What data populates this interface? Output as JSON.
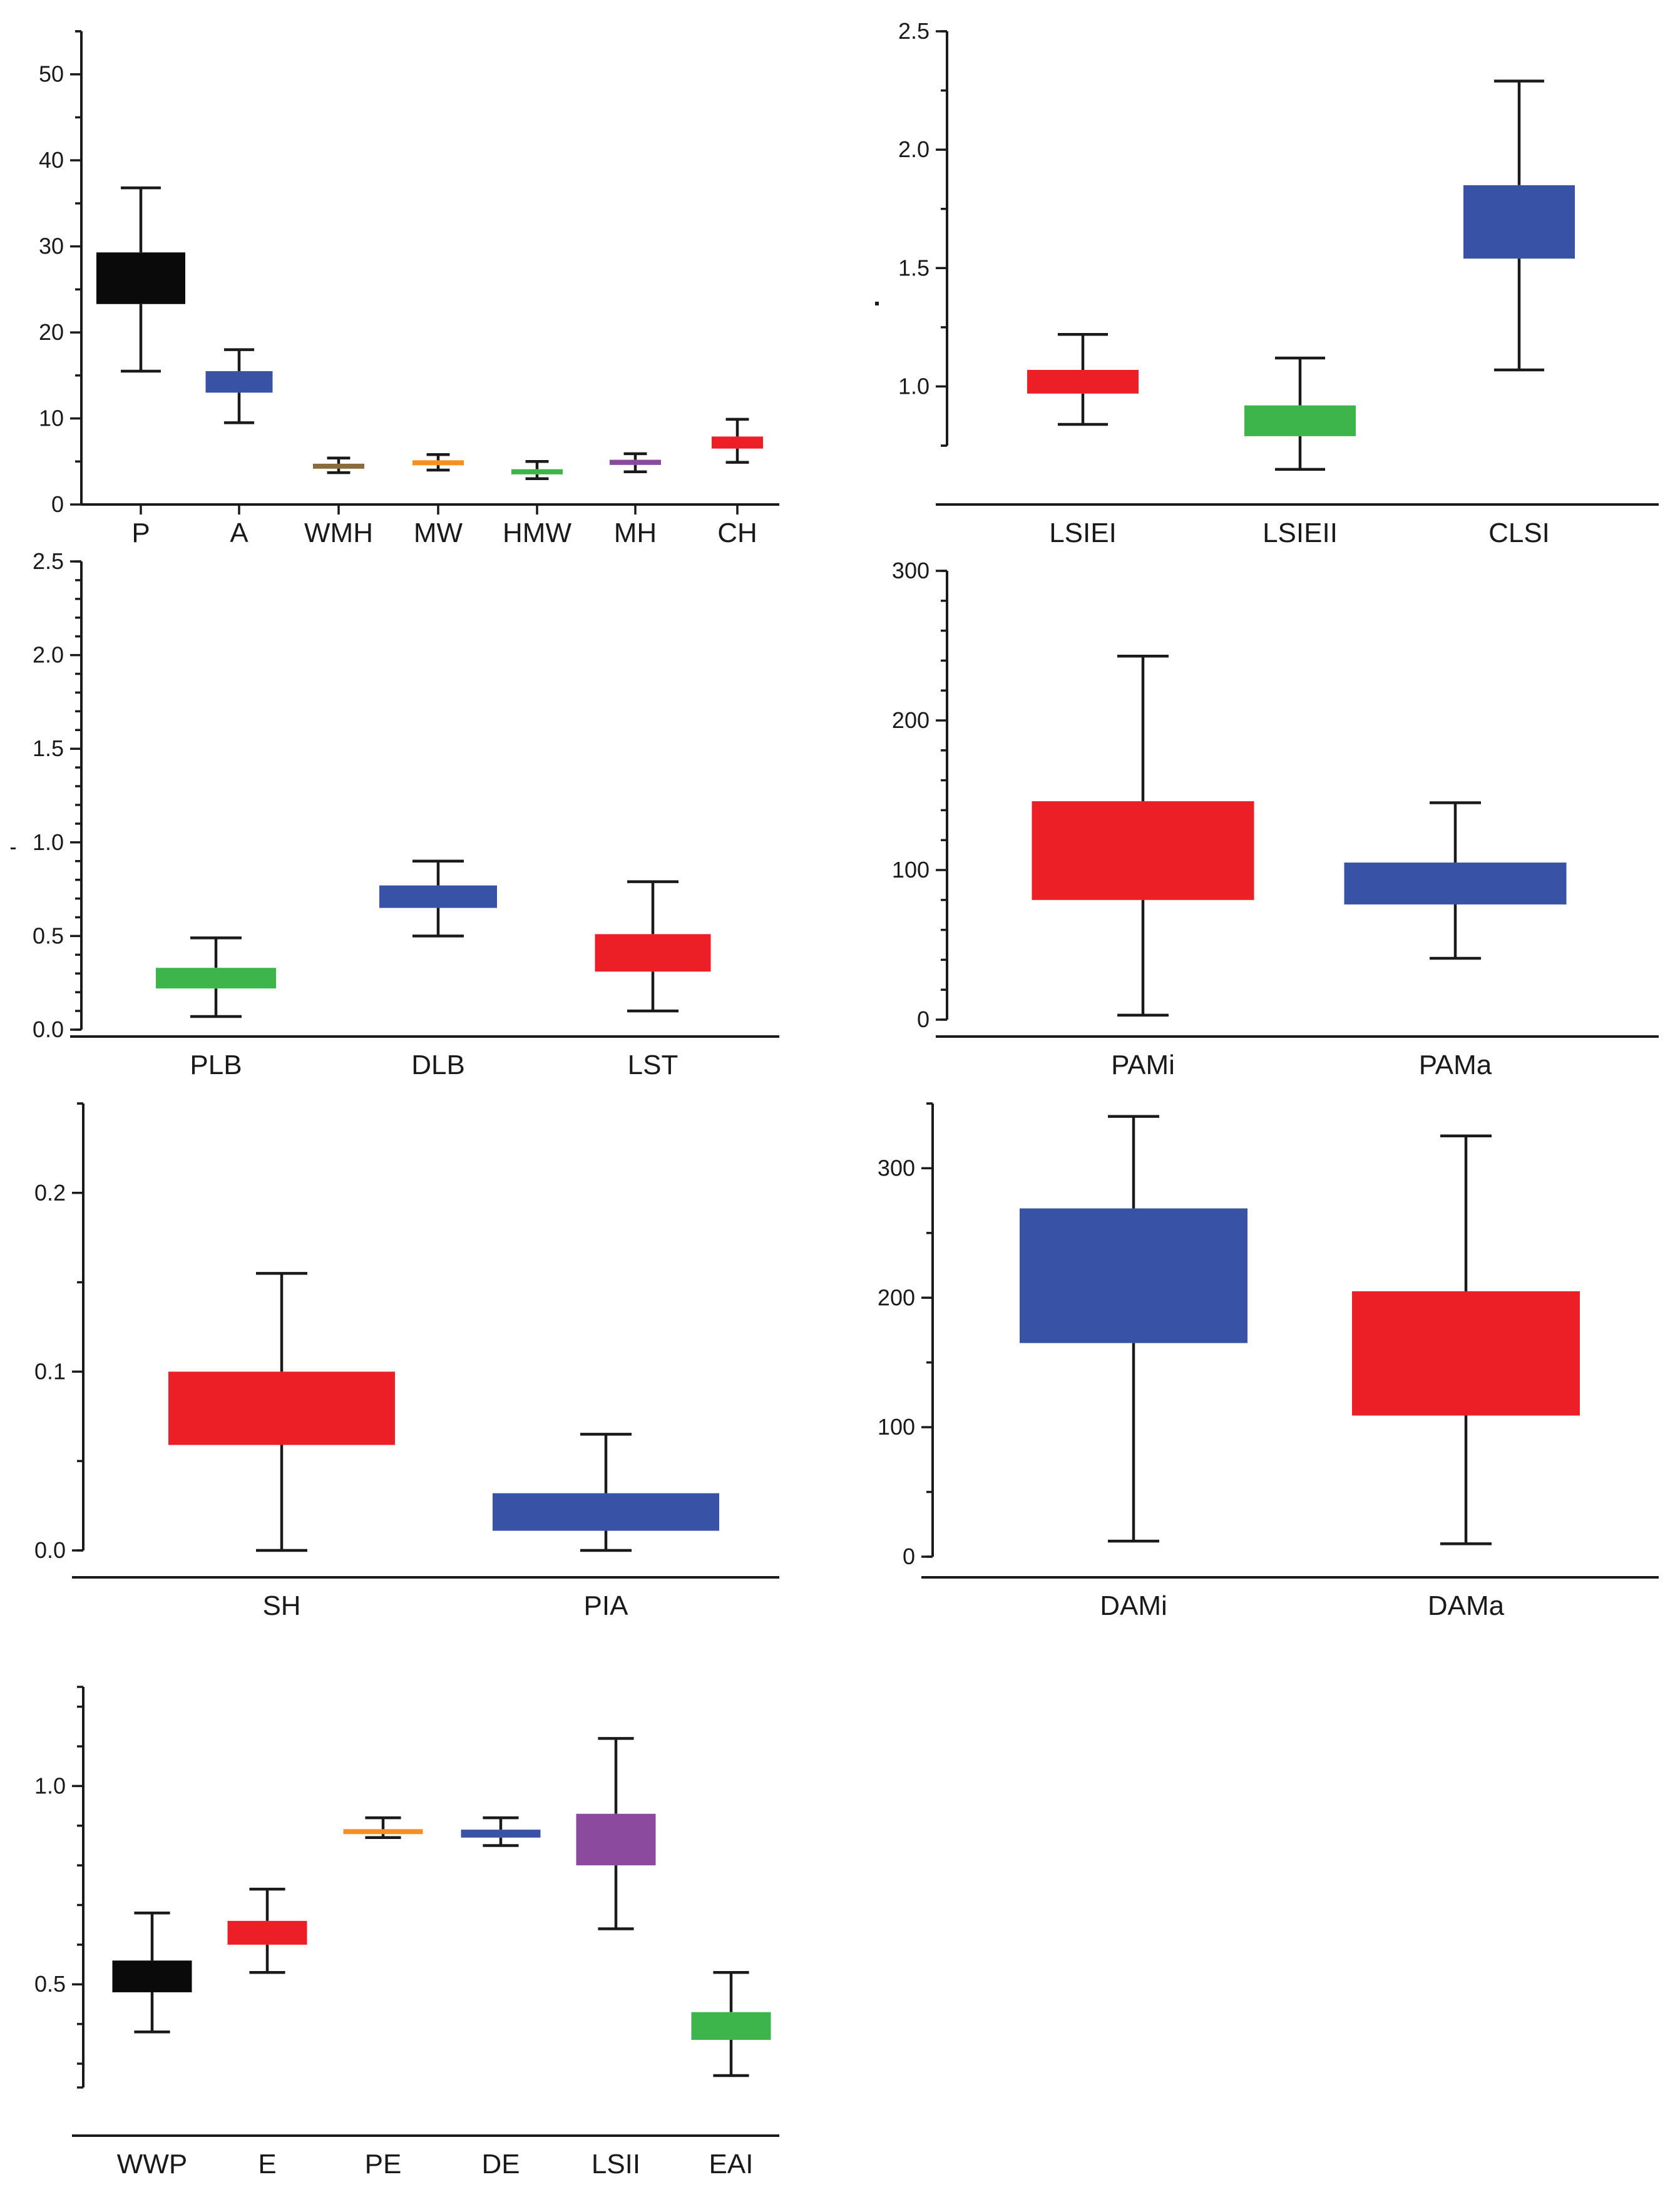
{
  "colors": {
    "black": "#0a0a0a",
    "blue": "#3853a5",
    "red": "#ec1f27",
    "green": "#3db54a",
    "orange": "#f7901e",
    "purple": "#8b4a9e",
    "brown": "#8b6b3c"
  },
  "chart_data": [
    {
      "id": "panel-1",
      "type": "box",
      "ylim": [
        0,
        55
      ],
      "yticks": [
        0,
        10,
        20,
        30,
        40,
        50
      ],
      "ytick_labels": [
        "0",
        "10",
        "20",
        "30",
        "40",
        "50"
      ],
      "categories": [
        "P",
        "A",
        "WMH",
        "MW",
        "HMW",
        "MH",
        "CH"
      ],
      "boxes": [
        {
          "label": "P",
          "min": 15.5,
          "q1": 23.3,
          "q3": 29.3,
          "max": 36.8,
          "color": "black"
        },
        {
          "label": "A",
          "min": 9.5,
          "q1": 13.0,
          "q3": 15.5,
          "max": 18.0,
          "color": "blue"
        },
        {
          "label": "WMH",
          "min": 3.7,
          "q1": 4.2,
          "q3": 4.7,
          "max": 5.4,
          "color": "brown"
        },
        {
          "label": "MW",
          "min": 4.0,
          "q1": 4.6,
          "q3": 5.1,
          "max": 5.8,
          "color": "orange"
        },
        {
          "label": "HMW",
          "min": 3.0,
          "q1": 3.5,
          "q3": 4.1,
          "max": 5.0,
          "color": "green"
        },
        {
          "label": "MH",
          "min": 3.8,
          "q1": 4.6,
          "q3": 5.2,
          "max": 5.9,
          "color": "purple"
        },
        {
          "label": "CH",
          "min": 4.9,
          "q1": 6.5,
          "q3": 7.9,
          "max": 9.9,
          "color": "red"
        }
      ]
    },
    {
      "id": "panel-2",
      "type": "box",
      "ylim": [
        0.75,
        2.5
      ],
      "yticks": [
        1.0,
        1.5,
        2.0,
        2.5
      ],
      "ytick_labels": [
        "1.0",
        "1.5",
        "2.0",
        "2.5"
      ],
      "categories": [
        "LSIEI",
        "LSIEII",
        "CLSI"
      ],
      "boxes": [
        {
          "label": "LSIEI",
          "min": 0.84,
          "q1": 0.97,
          "q3": 1.07,
          "max": 1.22,
          "color": "red"
        },
        {
          "label": "LSIEII",
          "min": 0.65,
          "q1": 0.79,
          "q3": 0.92,
          "max": 1.12,
          "color": "green"
        },
        {
          "label": "CLSI",
          "min": 1.07,
          "q1": 1.54,
          "q3": 1.85,
          "max": 2.29,
          "color": "blue"
        }
      ]
    },
    {
      "id": "panel-3",
      "type": "box",
      "ylim": [
        0,
        2.5
      ],
      "yticks": [
        0.0,
        0.5,
        1.0,
        1.5,
        2.0,
        2.5
      ],
      "ytick_labels": [
        "0.0",
        "0.5",
        "1.0",
        "1.5",
        "2.0",
        "2.5"
      ],
      "categories": [
        "PLB",
        "DLB",
        "LST"
      ],
      "boxes": [
        {
          "label": "PLB",
          "min": 0.07,
          "q1": 0.22,
          "q3": 0.33,
          "max": 0.49,
          "color": "green"
        },
        {
          "label": "DLB",
          "min": 0.5,
          "q1": 0.65,
          "q3": 0.77,
          "max": 0.9,
          "color": "blue"
        },
        {
          "label": "LST",
          "min": 0.1,
          "q1": 0.31,
          "q3": 0.51,
          "max": 0.79,
          "color": "red"
        }
      ]
    },
    {
      "id": "panel-4",
      "type": "box",
      "ylim": [
        0,
        300
      ],
      "yticks": [
        0,
        100,
        200,
        300
      ],
      "ytick_labels": [
        "0",
        "100",
        "200",
        "300"
      ],
      "categories": [
        "PAMi",
        "PAMa"
      ],
      "boxes": [
        {
          "label": "PAMi",
          "min": 3,
          "q1": 80,
          "q3": 146,
          "max": 243,
          "color": "red"
        },
        {
          "label": "PAMa",
          "min": 41,
          "q1": 77,
          "q3": 105,
          "max": 145,
          "color": "blue"
        }
      ]
    },
    {
      "id": "panel-5",
      "type": "box",
      "ylim": [
        0,
        0.25
      ],
      "yticks": [
        0.0,
        0.1,
        0.2
      ],
      "ytick_labels": [
        "0.0",
        "0.1",
        "0.2"
      ],
      "categories": [
        "SH",
        "PIA"
      ],
      "boxes": [
        {
          "label": "SH",
          "min": 0.0,
          "q1": 0.059,
          "q3": 0.1,
          "max": 0.155,
          "color": "red"
        },
        {
          "label": "PIA",
          "min": 0.0,
          "q1": 0.011,
          "q3": 0.032,
          "max": 0.065,
          "color": "blue"
        }
      ]
    },
    {
      "id": "panel-6",
      "type": "box",
      "ylim": [
        0,
        350
      ],
      "yticks": [
        0,
        100,
        200,
        300
      ],
      "ytick_labels": [
        "0",
        "100",
        "200",
        "300"
      ],
      "categories": [
        "DAMi",
        "DAMa"
      ],
      "boxes": [
        {
          "label": "DAMi",
          "min": 12,
          "q1": 165,
          "q3": 269,
          "max": 340,
          "color": "blue"
        },
        {
          "label": "DAMa",
          "min": 10,
          "q1": 109,
          "q3": 205,
          "max": 325,
          "color": "red"
        }
      ]
    },
    {
      "id": "panel-7",
      "type": "box",
      "ylim": [
        0.24,
        1.25
      ],
      "yticks": [
        0.5,
        1.0
      ],
      "ytick_labels": [
        "0.5",
        "1.0"
      ],
      "categories": [
        "WWP",
        "E",
        "PE",
        "DE",
        "LSII",
        "EAI"
      ],
      "boxes": [
        {
          "label": "WWP",
          "min": 0.38,
          "q1": 0.48,
          "q3": 0.56,
          "max": 0.68,
          "color": "black"
        },
        {
          "label": "E",
          "min": 0.53,
          "q1": 0.6,
          "q3": 0.66,
          "max": 0.74,
          "color": "red"
        },
        {
          "label": "PE",
          "min": 0.87,
          "q1": 0.88,
          "q3": 0.89,
          "max": 0.92,
          "color": "orange"
        },
        {
          "label": "DE",
          "min": 0.85,
          "q1": 0.87,
          "q3": 0.89,
          "max": 0.92,
          "color": "blue"
        },
        {
          "label": "LSII",
          "min": 0.64,
          "q1": 0.8,
          "q3": 0.93,
          "max": 1.12,
          "color": "purple"
        },
        {
          "label": "EAI",
          "min": 0.27,
          "q1": 0.36,
          "q3": 0.43,
          "max": 0.53,
          "color": "red_green_placeholder"
        }
      ]
    }
  ]
}
